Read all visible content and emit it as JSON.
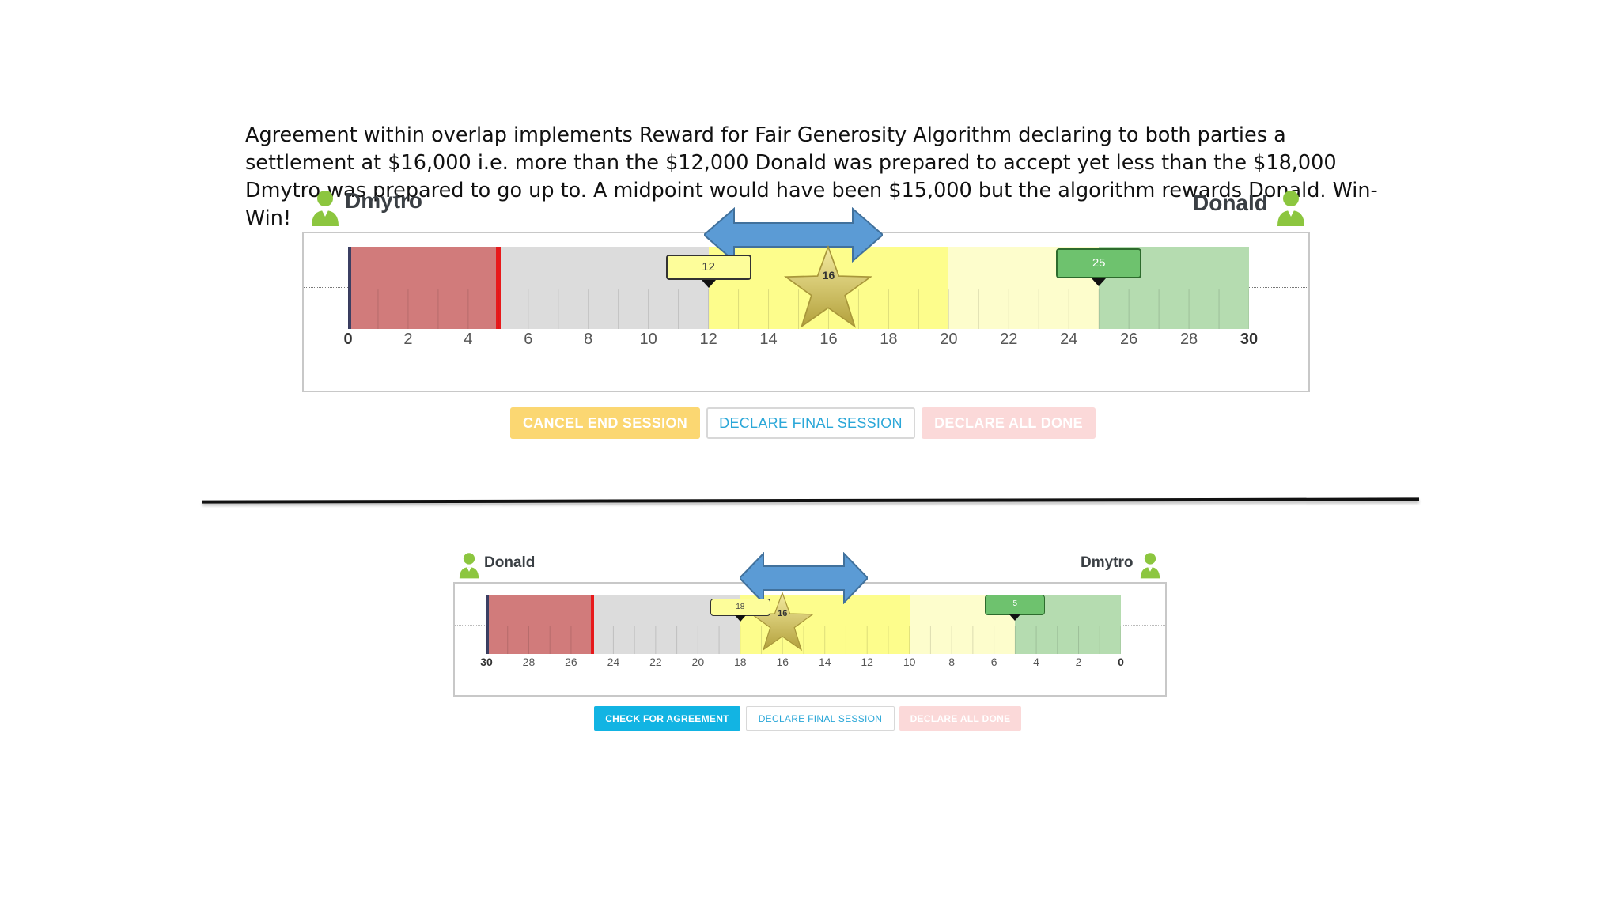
{
  "caption": "Agreement within overlap implements Reward for Fair Generosity Algorithm declaring to both parties a settlement at $16,000 i.e. more than the $12,000 Donald was prepared to accept yet less than the $18,000 Dmytro was prepared to go up to. A midpoint would have been $15,000 but the algorithm rewards Donald. Win-Win!",
  "colors": {
    "red_zone": "#d17b7b",
    "red_line": "#e8191b",
    "grey_zone": "#dcdcdc",
    "yellow_zone": "#fdfd8c",
    "pale_yellow_zone": "#fdfdcc",
    "green_zone": "#b5dcb0",
    "arrow_blue": "#5b9bd5",
    "cancel_btn": "#fbd772",
    "check_btn": "#12b4e3",
    "declare_all_btn": "#fbd9d9",
    "person_icon": "#8cc63f"
  },
  "top": {
    "left_party": "Dmytro",
    "right_party": "Donald",
    "ticks": [
      "0",
      "2",
      "4",
      "6",
      "8",
      "10",
      "12",
      "14",
      "16",
      "18",
      "20",
      "22",
      "24",
      "26",
      "28",
      "30"
    ],
    "scale_min": 0,
    "scale_max": 30,
    "red_end": 5,
    "overlap_start": 12,
    "overlap_end": 20,
    "pale_end": 25,
    "yellow_marker": "12",
    "green_marker": "25",
    "star_label": "16",
    "buttons": {
      "cancel": "CANCEL END SESSION",
      "declare_final": "DECLARE FINAL SESSION",
      "declare_all": "DECLARE ALL DONE"
    }
  },
  "bottom": {
    "left_party": "Donald",
    "right_party": "Dmytro",
    "ticks": [
      "30",
      "28",
      "26",
      "24",
      "22",
      "20",
      "18",
      "16",
      "14",
      "12",
      "10",
      "8",
      "6",
      "4",
      "2",
      "0"
    ],
    "scale_left": 30,
    "scale_right": 0,
    "red_end": 25,
    "overlap_start": 18,
    "overlap_end": 10,
    "pale_end": 5,
    "yellow_marker": "18",
    "green_marker": "5",
    "star_label": "16",
    "buttons": {
      "check": "CHECK FOR AGREEMENT",
      "declare_final": "DECLARE FINAL SESSION",
      "declare_all": "DECLARE ALL DONE"
    }
  }
}
